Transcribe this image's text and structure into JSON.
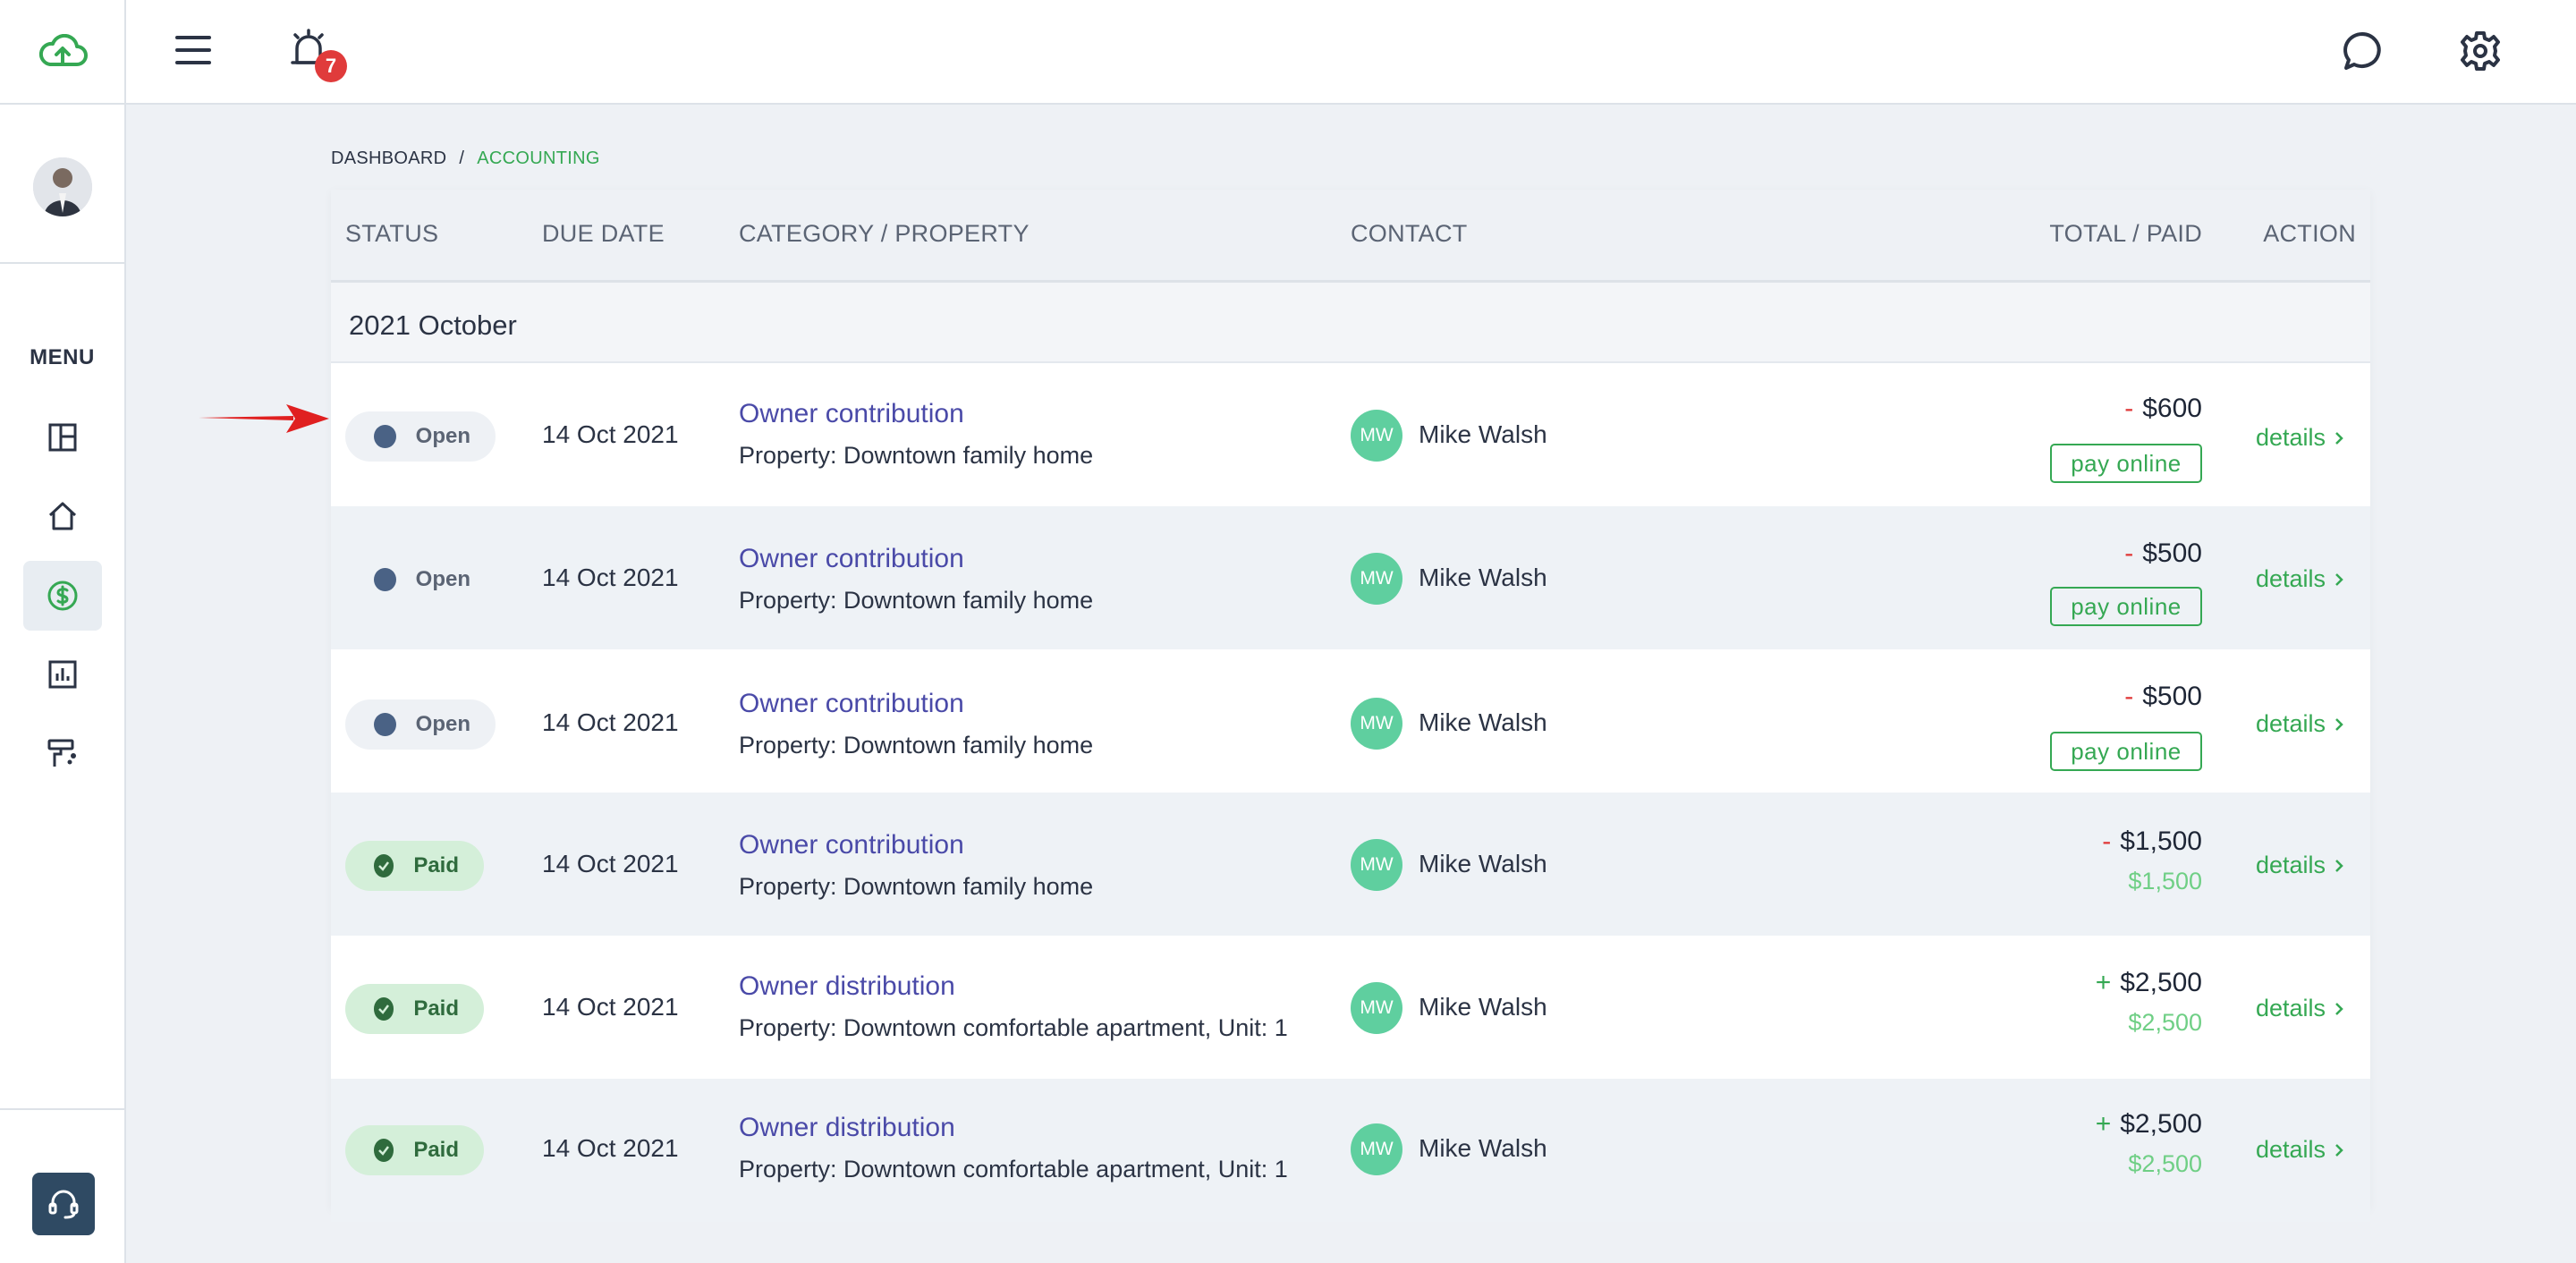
{
  "topbar": {
    "notification_count": "7",
    "icons": [
      "cloud-upload-icon",
      "menu-icon",
      "alarm-icon",
      "chat-icon",
      "gear-icon"
    ]
  },
  "sidebar": {
    "menu_label": "MENU",
    "items": [
      {
        "name": "dashboard",
        "icon": "dashboard-icon"
      },
      {
        "name": "properties",
        "icon": "home-icon"
      },
      {
        "name": "accounting",
        "icon": "dollar-icon",
        "active": true
      },
      {
        "name": "reports",
        "icon": "chart-icon"
      },
      {
        "name": "maintenance",
        "icon": "paint-roller-icon"
      }
    ]
  },
  "breadcrumb": {
    "root": "DASHBOARD",
    "separator": "/",
    "current": "ACCOUNTING"
  },
  "table": {
    "headers": {
      "status": "STATUS",
      "due": "DUE DATE",
      "category": "CATEGORY / PROPERTY",
      "contact": "CONTACT",
      "total": "TOTAL / PAID",
      "action": "ACTION"
    },
    "group": "2021 October",
    "rows": [
      {
        "status": "Open",
        "due": "14 Oct 2021",
        "category": "Owner contribution",
        "property": "Property: Downtown family home",
        "initials": "MW",
        "contact": "Mike Walsh",
        "sign": "-",
        "total": "$600",
        "pay": "pay online",
        "paid": "",
        "action": "details"
      },
      {
        "status": "Open",
        "due": "14 Oct 2021",
        "category": "Owner contribution",
        "property": "Property: Downtown family home",
        "initials": "MW",
        "contact": "Mike Walsh",
        "sign": "-",
        "total": "$500",
        "pay": "pay online",
        "paid": "",
        "action": "details"
      },
      {
        "status": "Open",
        "due": "14 Oct 2021",
        "category": "Owner contribution",
        "property": "Property: Downtown family home",
        "initials": "MW",
        "contact": "Mike Walsh",
        "sign": "-",
        "total": "$500",
        "pay": "pay online",
        "paid": "",
        "action": "details"
      },
      {
        "status": "Paid",
        "due": "14 Oct 2021",
        "category": "Owner contribution",
        "property": "Property: Downtown family home",
        "initials": "MW",
        "contact": "Mike Walsh",
        "sign": "-",
        "total": "$1,500",
        "pay": "",
        "paid": "$1,500",
        "action": "details"
      },
      {
        "status": "Paid",
        "due": "14 Oct 2021",
        "category": "Owner distribution",
        "property": "Property: Downtown comfortable apartment, Unit: 1",
        "initials": "MW",
        "contact": "Mike Walsh",
        "sign": "+",
        "total": "$2,500",
        "pay": "",
        "paid": "$2,500",
        "action": "details"
      },
      {
        "status": "Paid",
        "due": "14 Oct 2021",
        "category": "Owner distribution",
        "property": "Property: Downtown comfortable apartment, Unit: 1",
        "initials": "MW",
        "contact": "Mike Walsh",
        "sign": "+",
        "total": "$2,500",
        "pay": "",
        "paid": "$2,500",
        "action": "details"
      }
    ]
  },
  "colors": {
    "accent": "#35a853",
    "link": "#4a4aa8",
    "badge": "#e03b3b",
    "open_dot": "#4a6285",
    "paid_bg": "#d4efd9",
    "annotation_arrow": "#e02020"
  }
}
